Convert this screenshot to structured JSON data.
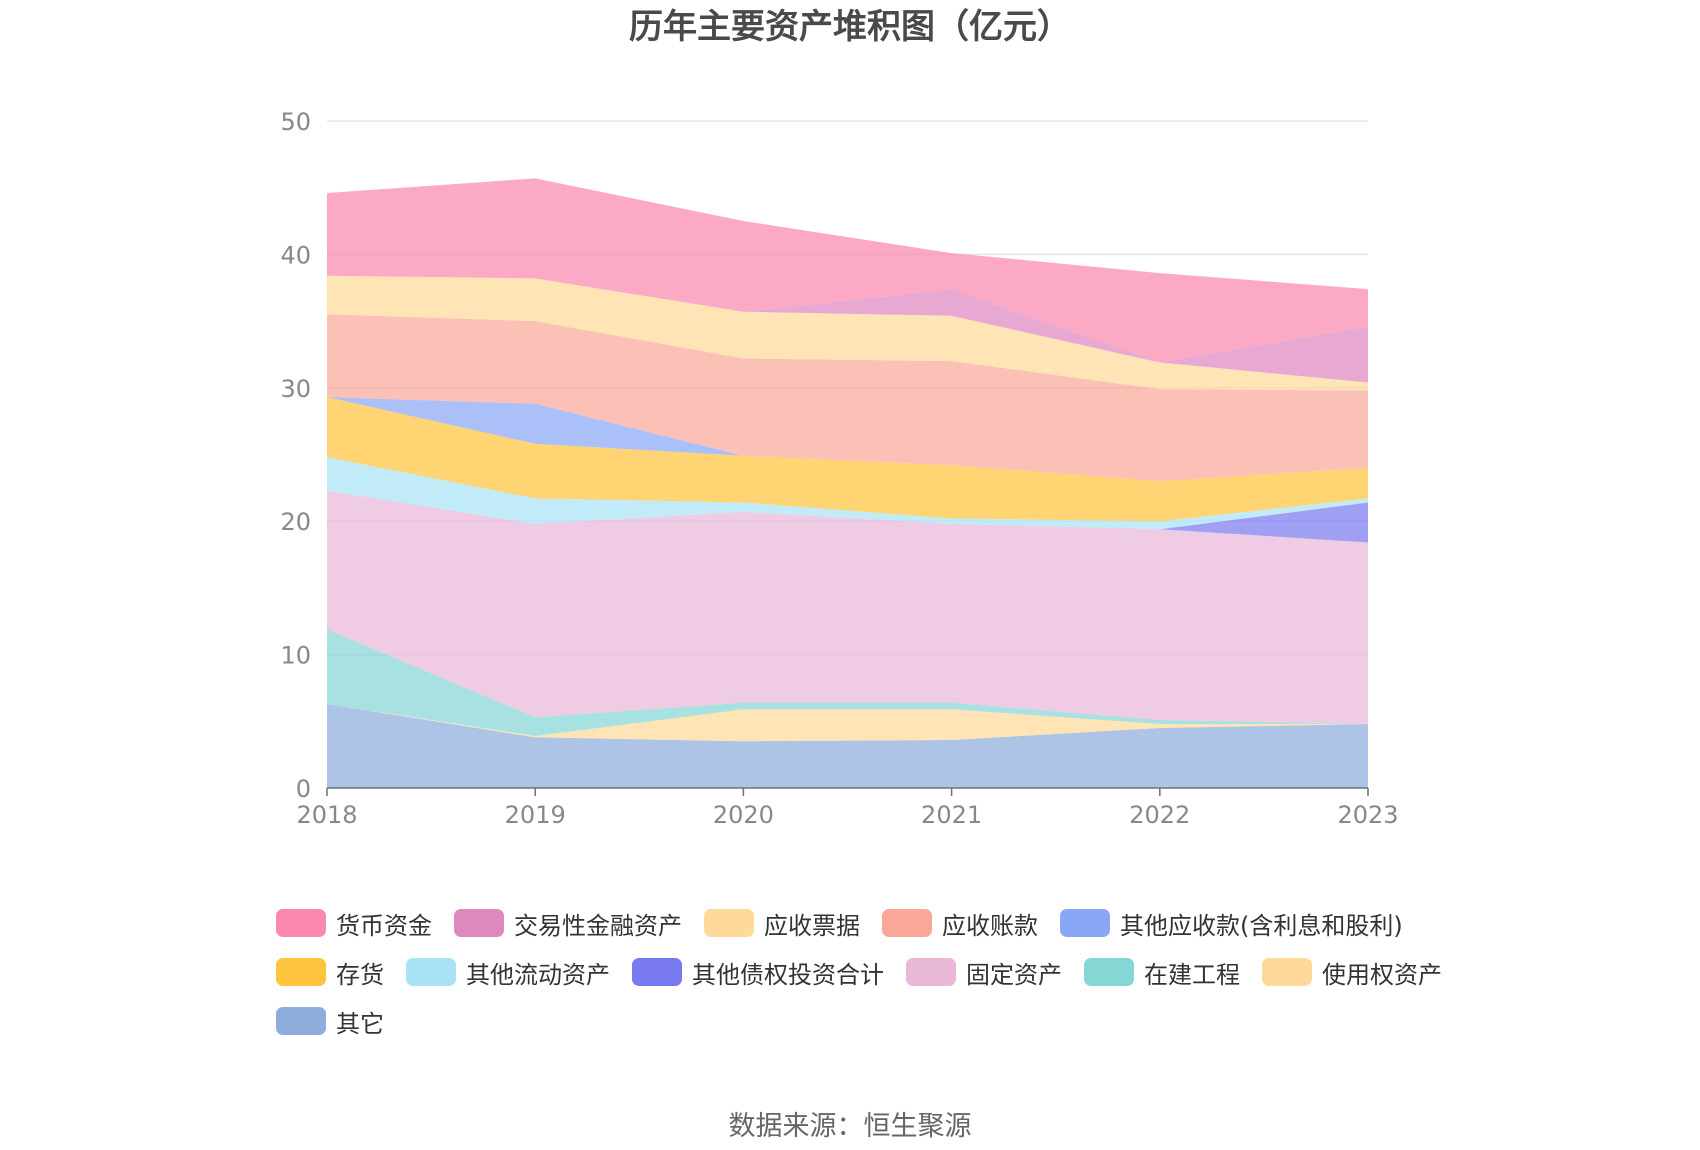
{
  "chart_data": {
    "type": "area",
    "stacked": true,
    "title": "历年主要资产堆积图（亿元）",
    "x": [
      "2018",
      "2019",
      "2020",
      "2021",
      "2022",
      "2023"
    ],
    "ylim": [
      0,
      50
    ],
    "yticks": [
      "0",
      "10",
      "20",
      "30",
      "40",
      "50"
    ],
    "grid": true,
    "legend_position": "bottom",
    "series": [
      {
        "name": "其它",
        "color": "#8eaddc",
        "values": [
          6.3,
          3.8,
          3.5,
          3.6,
          4.5,
          4.8
        ]
      },
      {
        "name": "使用权资产",
        "color": "#ffd99a",
        "values": [
          0,
          0.1,
          2.4,
          2.3,
          0.3,
          0
        ]
      },
      {
        "name": "在建工程",
        "color": "#86d6d6",
        "values": [
          5.6,
          1.4,
          0.5,
          0.5,
          0.3,
          0
        ]
      },
      {
        "name": "固定资产",
        "color": "#e9b8d8",
        "values": [
          10.4,
          14.5,
          14.3,
          13.4,
          14.3,
          13.6
        ]
      },
      {
        "name": "其他债权投资合计",
        "color": "#7a7af0",
        "values": [
          0,
          0,
          0,
          0,
          0,
          3.0
        ]
      },
      {
        "name": "其他流动资产",
        "color": "#aae3f8",
        "values": [
          2.5,
          1.9,
          0.7,
          0.4,
          0.6,
          0.3
        ]
      },
      {
        "name": "存货",
        "color": "#ffc43d",
        "values": [
          4.5,
          4.1,
          3.5,
          4.0,
          3.0,
          2.3
        ]
      },
      {
        "name": "其他应收款(含利息和股利)",
        "color": "#8aa7f5",
        "values": [
          0,
          3.0,
          0,
          0,
          0,
          0
        ]
      },
      {
        "name": "应收账款",
        "color": "#faa79a",
        "values": [
          6.2,
          6.2,
          7.3,
          7.8,
          6.9,
          5.8
        ]
      },
      {
        "name": "应收票据",
        "color": "#ffd99a",
        "values": [
          2.9,
          3.2,
          3.5,
          3.4,
          2.0,
          0.6
        ]
      },
      {
        "name": "交易性金融资产",
        "color": "#de88c0",
        "values": [
          0,
          0,
          0,
          2.0,
          0,
          4.2
        ]
      },
      {
        "name": "货币资金",
        "color": "#fb88b0",
        "values": [
          6.2,
          7.5,
          6.8,
          2.7,
          6.7,
          2.8
        ]
      }
    ]
  },
  "legend_order": [
    "货币资金",
    "交易性金融资产",
    "应收票据",
    "应收账款",
    "其他应收款(含利息和股利)",
    "存货",
    "其他流动资产",
    "其他债权投资合计",
    "固定资产",
    "在建工程",
    "使用权资产",
    "其它"
  ],
  "source": "数据来源：恒生聚源"
}
